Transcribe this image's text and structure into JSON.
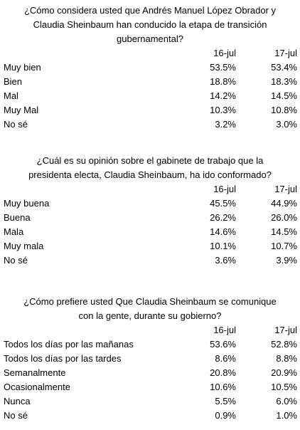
{
  "sections": [
    {
      "question": "¿Cómo considera usted que Andrés Manuel López Obrador y\nClaudia Sheinbaum han conducido la etapa de transición\ngubernamental?",
      "col1": "16-jul",
      "col2": "17-jul",
      "rows": [
        {
          "label": "Muy bien",
          "v1": "53.5%",
          "v2": "53.4%"
        },
        {
          "label": "Bien",
          "v1": "18.8%",
          "v2": "18.3%"
        },
        {
          "label": "Mal",
          "v1": "14.2%",
          "v2": "14.5%"
        },
        {
          "label": "Muy Mal",
          "v1": "10.3%",
          "v2": "10.8%"
        },
        {
          "label": "No sé",
          "v1": "3.2%",
          "v2": "3.0%"
        }
      ]
    },
    {
      "question": "¿Cuál es su opinión sobre el gabinete de trabajo que la\npresidenta electa, Claudia Sheinbaum, ha ido conformado?",
      "col1": "16-jul",
      "col2": "17-jul",
      "rows": [
        {
          "label": "Muy buena",
          "v1": "45.5%",
          "v2": "44.9%"
        },
        {
          "label": "Buena",
          "v1": "26.2%",
          "v2": "26.0%"
        },
        {
          "label": "Mala",
          "v1": "14.6%",
          "v2": "14.5%"
        },
        {
          "label": "Muy mala",
          "v1": "10.1%",
          "v2": "10.7%"
        },
        {
          "label": "No sé",
          "v1": "3.6%",
          "v2": "3.9%"
        }
      ]
    },
    {
      "question": "¿Cómo prefiere usted Que Claudia Sheinbaum se comunique\ncon la gente, durante su gobierno?",
      "col1": "16-jul",
      "col2": "17-jul",
      "rows": [
        {
          "label": "Todos los días por las mañanas",
          "v1": "53.6%",
          "v2": "52.8%"
        },
        {
          "label": "Todos los días por las tardes",
          "v1": "8.6%",
          "v2": "8.8%"
        },
        {
          "label": "Semanalmente",
          "v1": "20.8%",
          "v2": "20.9%"
        },
        {
          "label": "Ocasionalmente",
          "v1": "10.6%",
          "v2": "10.5%"
        },
        {
          "label": "Nunca",
          "v1": "5.5%",
          "v2": "6.0%"
        },
        {
          "label": "No sé",
          "v1": "0.9%",
          "v2": "1.0%"
        }
      ]
    }
  ]
}
